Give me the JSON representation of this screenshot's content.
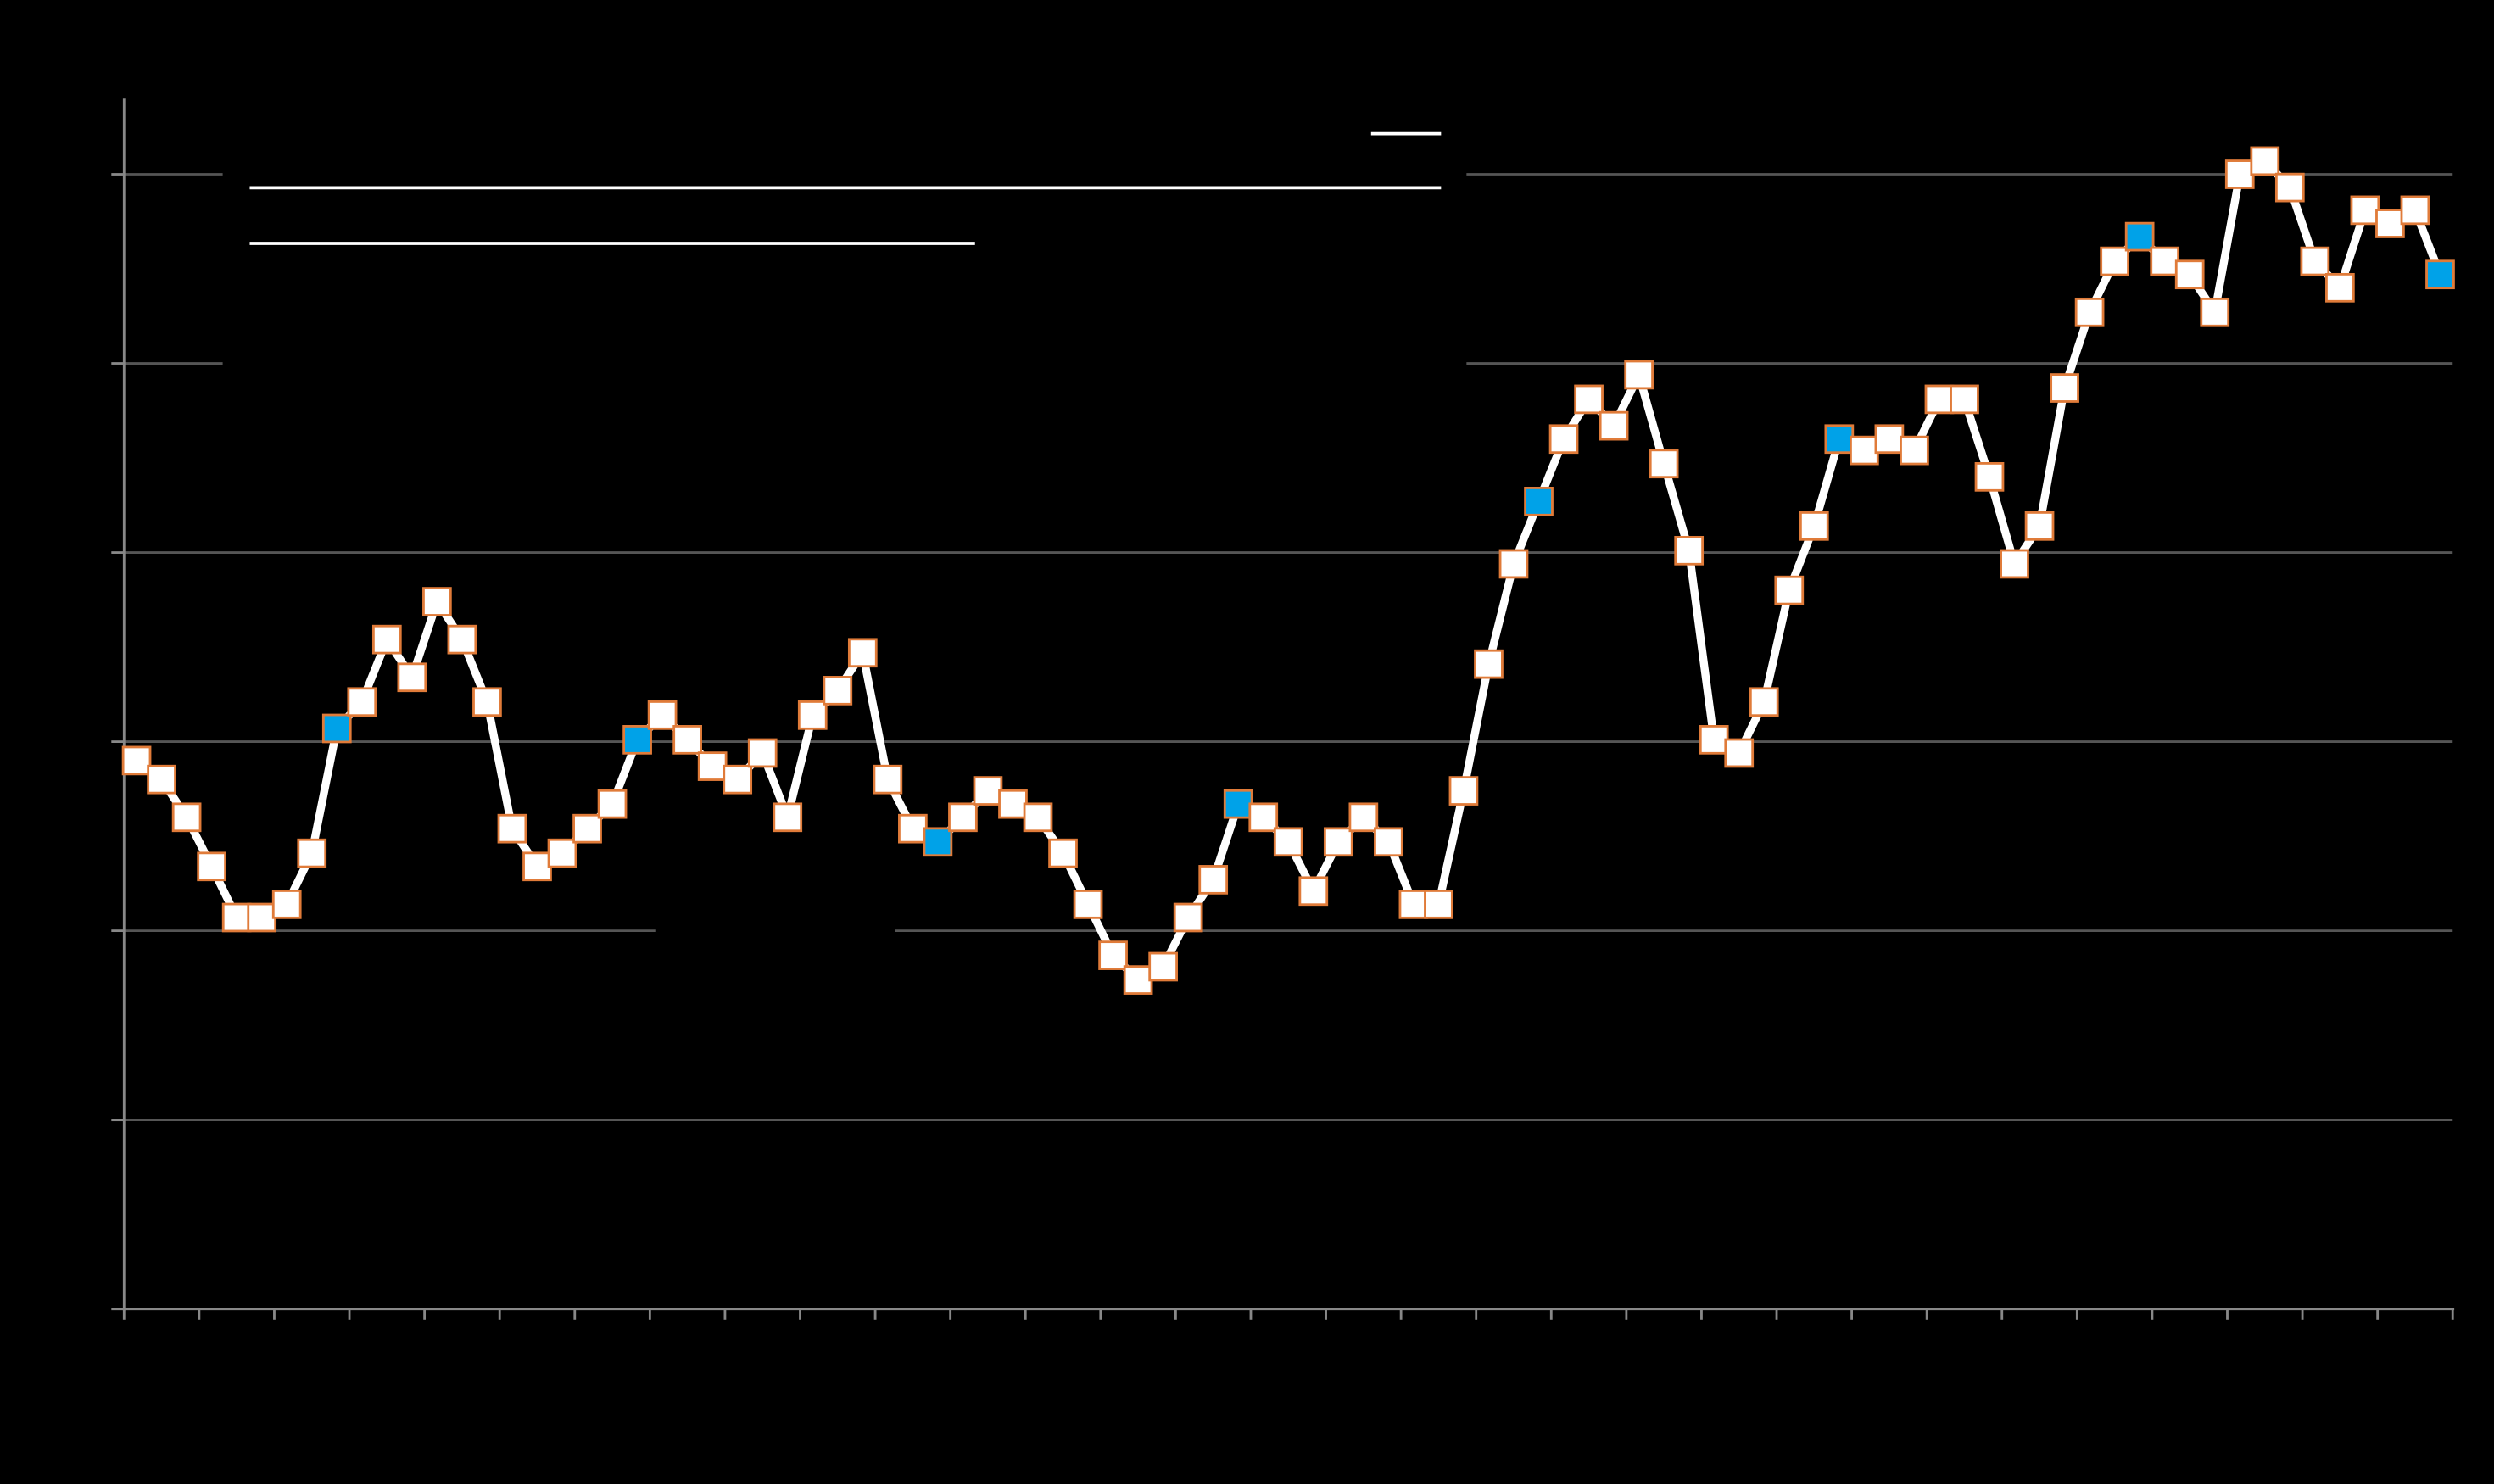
{
  "chart_data": {
    "type": "line",
    "categories": [
      null,
      null,
      null,
      null,
      null,
      null,
      null,
      null,
      null,
      null,
      null,
      null,
      null,
      null,
      null,
      null,
      null,
      null,
      null,
      null,
      null,
      null,
      null,
      null,
      null,
      null,
      null,
      null,
      null,
      null,
      null,
      null,
      null,
      null,
      null,
      null,
      null,
      null,
      null,
      null,
      null,
      null,
      null,
      null,
      null,
      null,
      null,
      null,
      null,
      null,
      null,
      null,
      null,
      null,
      null,
      null,
      null,
      null,
      null,
      null,
      null,
      null,
      null,
      null,
      null,
      null,
      null,
      null,
      null,
      null,
      null,
      null,
      null,
      null,
      null,
      null,
      null,
      null,
      null,
      null,
      null,
      null,
      null,
      null,
      null,
      null,
      null,
      null,
      null,
      null,
      null,
      null,
      null
    ],
    "series": [
      {
        "color": "#ffffff",
        "marker_color": "#ffffff",
        "marker_edge": "#e07b39",
        "values": [
          2.9,
          2.8,
          2.6,
          2.34,
          2.07,
          2.07,
          2.14,
          2.41,
          3.07,
          3.21,
          3.54,
          3.34,
          3.74,
          3.54,
          3.21,
          2.54,
          2.34,
          2.41,
          2.54,
          2.67,
          3.01,
          3.14,
          3.01,
          2.87,
          2.8,
          2.94,
          2.6,
          3.14,
          3.27,
          3.47,
          2.8,
          2.54,
          2.47,
          2.6,
          2.74,
          2.67,
          2.6,
          2.41,
          2.14,
          1.87,
          1.74,
          1.81,
          2.07,
          2.27,
          2.67,
          2.6,
          2.47,
          2.21,
          2.47,
          2.6,
          2.47,
          2.14,
          2.14,
          2.74,
          3.41,
          3.94,
          4.27,
          4.6,
          4.81,
          4.67,
          4.94,
          4.47,
          4.01,
          3.01,
          2.94,
          3.21,
          3.8,
          4.14,
          4.6,
          4.54,
          4.6,
          4.54,
          4.81,
          4.81,
          4.4,
          3.94,
          4.14,
          4.87,
          5.27,
          5.54,
          5.67,
          5.54,
          5.47,
          5.27,
          6.0,
          6.07,
          5.93,
          5.54,
          5.4,
          5.81,
          5.74,
          5.81,
          5.47
        ]
      }
    ],
    "highlight_color": "#00a2e8",
    "highlight_points": [
      8,
      20,
      32,
      44,
      56,
      68,
      80,
      92
    ],
    "ylim": [
      0,
      6.4
    ],
    "yticks": [
      1,
      2,
      3,
      4,
      5,
      6
    ],
    "grid": true
  }
}
